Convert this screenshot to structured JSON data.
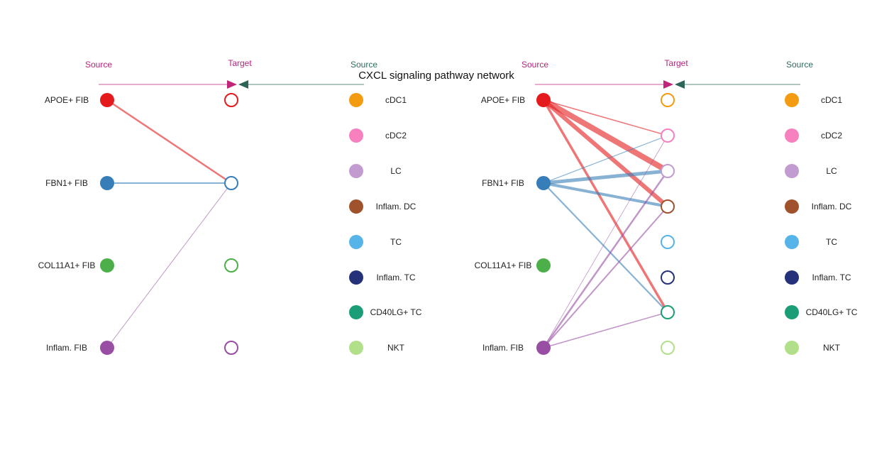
{
  "title": "CXCL signaling pathway network",
  "header_labels": {
    "source_left": "Source",
    "target": "Target",
    "source_right": "Source"
  },
  "header_colors": {
    "source_left": "#b5257a",
    "target": "#b5257a",
    "source_right": "#2f6b5f",
    "arrow_left": "#c0257a",
    "arrow_right": "#2e6357"
  },
  "sources": [
    {
      "name": "APOE+ FIB",
      "color": "#e41a1c"
    },
    {
      "name": "FBN1+ FIB",
      "color": "#377eb8"
    },
    {
      "name": "COL11A1+ FIB",
      "color": "#4daf4a"
    },
    {
      "name": "Inflam. FIB",
      "color": "#984ea3"
    }
  ],
  "receivers": [
    {
      "name": "cDC1",
      "color": "#f39c12"
    },
    {
      "name": "cDC2",
      "color": "#f781bf"
    },
    {
      "name": "LC",
      "color": "#c29bd1"
    },
    {
      "name": "Inflam. DC",
      "color": "#a0522d"
    },
    {
      "name": "TC",
      "color": "#56b4e9"
    },
    {
      "name": "Inflam. TC",
      "color": "#253178"
    },
    {
      "name": "CD40LG+ TC",
      "color": "#1b9e77"
    },
    {
      "name": "NKT",
      "color": "#b2df8a"
    }
  ],
  "panels": [
    {
      "id": "left",
      "edges": [
        {
          "from": "APOE+ FIB",
          "to": "FBN1+ FIB",
          "weight": 2.5
        },
        {
          "from": "FBN1+ FIB",
          "to": "FBN1+ FIB",
          "weight": 2
        },
        {
          "from": "Inflam. FIB",
          "to": "FBN1+ FIB",
          "weight": 1
        }
      ]
    },
    {
      "id": "right",
      "edges": [
        {
          "from": "APOE+ FIB",
          "to": "cDC2",
          "weight": 1.5
        },
        {
          "from": "APOE+ FIB",
          "to": "LC",
          "weight": 8
        },
        {
          "from": "APOE+ FIB",
          "to": "Inflam. DC",
          "weight": 6
        },
        {
          "from": "APOE+ FIB",
          "to": "CD40LG+ TC",
          "weight": 3.5
        },
        {
          "from": "FBN1+ FIB",
          "to": "cDC2",
          "weight": 1.2
        },
        {
          "from": "FBN1+ FIB",
          "to": "LC",
          "weight": 5
        },
        {
          "from": "FBN1+ FIB",
          "to": "Inflam. DC",
          "weight": 4
        },
        {
          "from": "FBN1+ FIB",
          "to": "CD40LG+ TC",
          "weight": 2.2
        },
        {
          "from": "Inflam. FIB",
          "to": "cDC2",
          "weight": 0.8
        },
        {
          "from": "Inflam. FIB",
          "to": "LC",
          "weight": 2.5
        },
        {
          "from": "Inflam. FIB",
          "to": "Inflam. DC",
          "weight": 2
        },
        {
          "from": "Inflam. FIB",
          "to": "CD40LG+ TC",
          "weight": 1.5
        }
      ]
    }
  ]
}
